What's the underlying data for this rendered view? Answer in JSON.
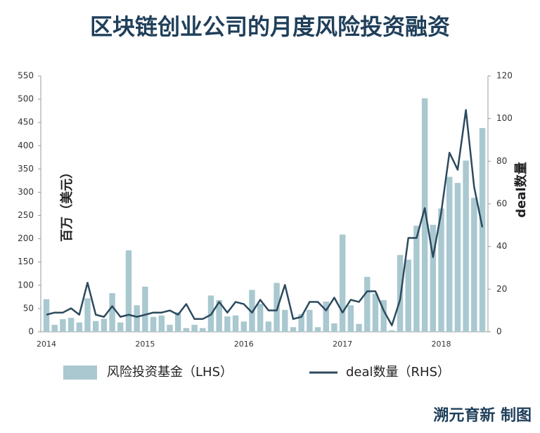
{
  "chart_data": {
    "type": "bar",
    "title": "区块链创业公司的月度风险投资融资",
    "ylabel": "百万（美元）",
    "y2label": "deal数量",
    "credit": "溯元育新 制图",
    "categories": [
      "2014",
      null,
      null,
      null,
      null,
      null,
      null,
      null,
      null,
      null,
      null,
      null,
      "2015",
      null,
      null,
      null,
      null,
      null,
      null,
      null,
      null,
      null,
      null,
      null,
      "2016",
      null,
      null,
      null,
      null,
      null,
      null,
      null,
      null,
      null,
      null,
      null,
      "2017",
      null,
      null,
      null,
      null,
      null,
      null,
      null,
      null,
      null,
      null,
      null,
      "2018",
      null,
      null,
      null,
      null,
      null
    ],
    "series": [
      {
        "name": "风险投资基金（LHS）",
        "color": "#a9c8d0",
        "type": "bar",
        "values": [
          70,
          15,
          27,
          30,
          20,
          72,
          23,
          28,
          83,
          20,
          175,
          57,
          97,
          32,
          35,
          15,
          42,
          8,
          15,
          8,
          78,
          68,
          33,
          35,
          22,
          90,
          60,
          22,
          105,
          47,
          10,
          38,
          47,
          10,
          65,
          18,
          209,
          57,
          17,
          118,
          82,
          68,
          3,
          165,
          155,
          228,
          502,
          230,
          265,
          333,
          320,
          368,
          288,
          438
        ]
      },
      {
        "name": "deal数量（RHS）",
        "color": "#2d4a5e",
        "type": "line",
        "axis": "y2",
        "values": [
          8,
          9,
          9,
          11,
          8,
          23,
          8,
          7,
          12,
          7,
          8,
          7,
          8,
          9,
          9,
          10,
          8,
          13,
          6,
          6,
          8,
          14,
          9,
          14,
          13,
          9,
          15,
          10,
          10,
          22,
          6,
          7,
          14,
          14,
          10,
          16,
          9,
          15,
          14,
          19,
          19,
          10,
          3,
          15,
          44,
          44,
          58,
          35,
          56,
          84,
          76,
          104,
          68,
          49
        ]
      }
    ],
    "ylim": [
      0,
      550
    ],
    "yticks": [
      0,
      50,
      100,
      150,
      200,
      250,
      300,
      350,
      400,
      450,
      500,
      550
    ],
    "y2lim": [
      0,
      120
    ],
    "y2ticks": [
      0,
      20,
      40,
      60,
      80,
      100,
      120
    ],
    "legend": "bottom"
  }
}
